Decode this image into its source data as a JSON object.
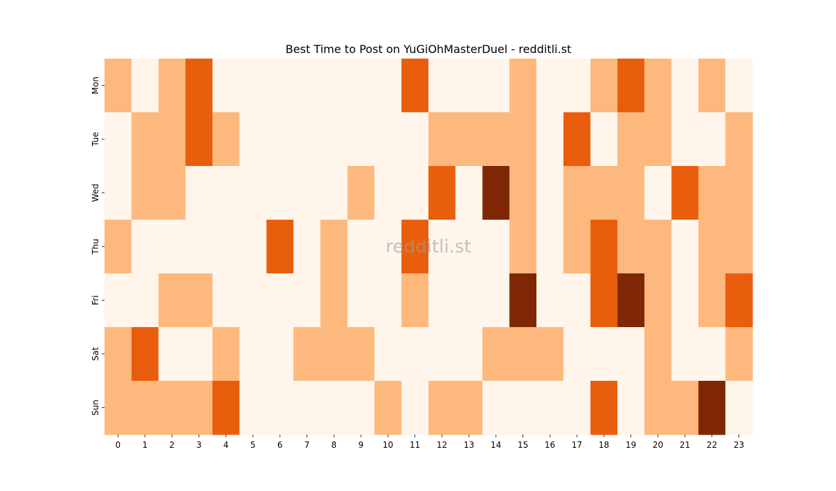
{
  "chart_data": {
    "type": "heatmap",
    "title": "Best Time to Post on YuGiOhMasterDuel - redditli.st",
    "watermark": "redditli.st",
    "xlabel": "",
    "ylabel": "",
    "x_categories": [
      "0",
      "1",
      "2",
      "3",
      "4",
      "5",
      "6",
      "7",
      "8",
      "9",
      "10",
      "11",
      "12",
      "13",
      "14",
      "15",
      "16",
      "17",
      "18",
      "19",
      "20",
      "21",
      "22",
      "23"
    ],
    "y_categories": [
      "Mon",
      "Tue",
      "Wed",
      "Thu",
      "Fri",
      "Sat",
      "Sun"
    ],
    "values": [
      [
        1,
        0,
        1,
        2,
        0,
        0,
        0,
        0,
        0,
        0,
        0,
        2,
        0,
        0,
        0,
        1,
        0,
        0,
        1,
        2,
        1,
        0,
        1,
        0
      ],
      [
        0,
        1,
        1,
        2,
        1,
        0,
        0,
        0,
        0,
        0,
        0,
        0,
        1,
        1,
        1,
        1,
        0,
        2,
        0,
        1,
        1,
        0,
        0,
        1
      ],
      [
        0,
        1,
        1,
        0,
        0,
        0,
        0,
        0,
        0,
        1,
        0,
        0,
        2,
        0,
        3,
        1,
        0,
        1,
        1,
        1,
        0,
        2,
        1,
        1
      ],
      [
        1,
        0,
        0,
        0,
        0,
        0,
        2,
        0,
        1,
        0,
        0,
        2,
        0,
        0,
        0,
        1,
        0,
        1,
        2,
        1,
        1,
        0,
        1,
        1
      ],
      [
        0,
        0,
        1,
        1,
        0,
        0,
        0,
        0,
        1,
        0,
        0,
        1,
        0,
        0,
        0,
        3,
        0,
        0,
        2,
        3,
        1,
        0,
        1,
        2
      ],
      [
        1,
        2,
        0,
        0,
        1,
        0,
        0,
        1,
        1,
        1,
        0,
        0,
        0,
        0,
        1,
        1,
        1,
        0,
        0,
        0,
        1,
        0,
        0,
        1
      ],
      [
        1,
        1,
        1,
        1,
        2,
        0,
        0,
        0,
        0,
        0,
        1,
        0,
        1,
        1,
        0,
        0,
        0,
        0,
        2,
        0,
        1,
        1,
        3,
        0
      ]
    ],
    "value_range": [
      0,
      3
    ],
    "color_scale": [
      "#fff5eb",
      "#fdb97d",
      "#e95e0d",
      "#7f2704"
    ],
    "colorbar": false,
    "grid": false
  }
}
